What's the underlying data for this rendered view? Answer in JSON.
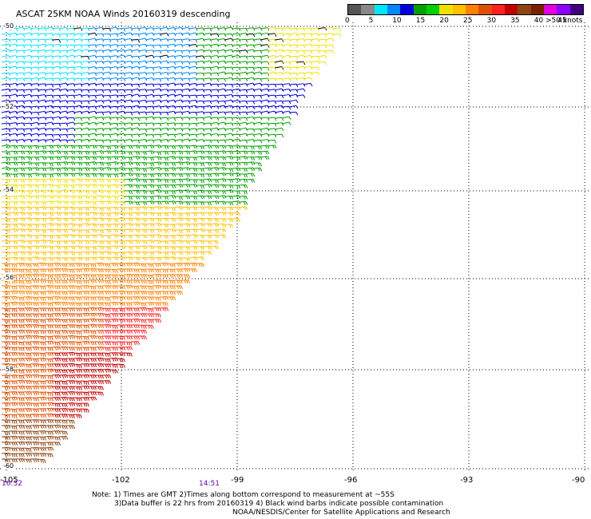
{
  "title": "ASCAT 25KM NOAA Winds 20160319 descending",
  "colorbar": {
    "colors": [
      "#555555",
      "#888888",
      "#00e5ff",
      "#0088ff",
      "#0000dd",
      "#00a000",
      "#00d000",
      "#f0e000",
      "#ffc000",
      "#ff8000",
      "#e05000",
      "#ff2020",
      "#c00000",
      "#8b4513",
      "#7a2000",
      "#e000e0",
      "#9000ff",
      "#400080"
    ],
    "labels": [
      "0",
      "5",
      "10",
      "15",
      "20",
      "25",
      "30",
      "35",
      "40",
      "45",
      ">50 knots"
    ]
  },
  "latitude_labels": [
    "-50",
    "-52",
    "-54",
    "-56",
    "-58",
    "-60"
  ],
  "longitude_labels": [
    "-105",
    "-102",
    "-99",
    "-96",
    "-93",
    "-90"
  ],
  "time_labels": [
    "16:32",
    "14:51"
  ],
  "notes": [
    "Note: 1) Times are GMT 2)Times along bottom correspond to measurement at ~55S",
    "3)Data buffer is 22 hrs from 20160319 4) Black wind barbs indicate possible contamination",
    "NOAA/NESDIS/Center for Satellite Applications and Research"
  ]
}
